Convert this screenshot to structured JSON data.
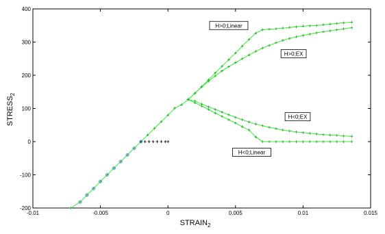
{
  "chart_data": {
    "type": "line",
    "xlabel": "STRAIN",
    "xlabel_sub": "2",
    "ylabel": "STRESS",
    "ylabel_sub": "2",
    "xlim": [
      -0.01,
      0.015
    ],
    "ylim": [
      -200,
      400
    ],
    "xticks": [
      -0.01,
      -0.005,
      0,
      0.005,
      0.01,
      0.015
    ],
    "xtick_labels": [
      "-0.01",
      "-0.005",
      "0",
      "0.005",
      "0.01",
      "0.015"
    ],
    "yticks": [
      -200,
      -100,
      0,
      100,
      200,
      300,
      400
    ],
    "ytick_labels": [
      "-200",
      "-100",
      "0",
      "100",
      "200",
      "300",
      "400"
    ],
    "grid": false,
    "colors": {
      "curve": "#33ee33",
      "marker": "#22aa22",
      "circle": "#7799ee",
      "black_marker": "#000000",
      "axis": "#000000"
    },
    "series": [
      {
        "id": "h-pos-linear",
        "color": "#33ee33",
        "marker": "plus",
        "x": [
          -0.0072,
          -0.0065,
          -0.006,
          -0.0055,
          -0.005,
          -0.0045,
          -0.004,
          -0.0035,
          -0.003,
          -0.0025,
          -0.002,
          -0.0015,
          -0.001,
          -0.0005,
          0,
          0.0005,
          0.001,
          0.0015,
          0.002,
          0.0025,
          0.003,
          0.0035,
          0.004,
          0.0045,
          0.005,
          0.0055,
          0.006,
          0.0065,
          0.007,
          0.0075,
          0.008,
          0.0085,
          0.009,
          0.0095,
          0.01,
          0.0105,
          0.011,
          0.0115,
          0.012,
          0.0125,
          0.013,
          0.0136
        ],
        "y": [
          -200,
          -182,
          -161,
          -141,
          -120,
          -100,
          -80,
          -60,
          -40,
          -20,
          0,
          20,
          40,
          60,
          80,
          101,
          111,
          127,
          146,
          166,
          186,
          207,
          227,
          247,
          267,
          288,
          308,
          327,
          337,
          339,
          340,
          342,
          344,
          346,
          348,
          349,
          350,
          352,
          354,
          356,
          358,
          360
        ]
      },
      {
        "id": "h-pos-ex",
        "color": "#33ee33",
        "marker": "plus",
        "x": [
          0.0015,
          0.002,
          0.0025,
          0.003,
          0.0035,
          0.004,
          0.0045,
          0.005,
          0.0055,
          0.006,
          0.0065,
          0.007,
          0.0075,
          0.008,
          0.0085,
          0.009,
          0.0095,
          0.01,
          0.0105,
          0.011,
          0.0115,
          0.012,
          0.0125,
          0.013,
          0.0136
        ],
        "y": [
          127,
          146,
          165,
          182,
          198,
          213,
          226,
          238,
          250,
          261,
          272,
          282,
          290,
          298,
          305,
          311,
          316,
          320,
          324,
          328,
          331,
          334,
          337,
          340,
          343
        ]
      },
      {
        "id": "h-neg-ex",
        "color": "#33ee33",
        "marker": "plus",
        "x": [
          0.0015,
          0.002,
          0.0025,
          0.003,
          0.0035,
          0.004,
          0.0045,
          0.005,
          0.0055,
          0.006,
          0.0065,
          0.007,
          0.0075,
          0.008,
          0.0085,
          0.009,
          0.0095,
          0.01,
          0.0105,
          0.011,
          0.0115,
          0.012,
          0.0125,
          0.013,
          0.0136
        ],
        "y": [
          127,
          122,
          113,
          105,
          97,
          89,
          81,
          73,
          66,
          59,
          53,
          48,
          43,
          39,
          35,
          32,
          29,
          27,
          25,
          23,
          21,
          20,
          19,
          17,
          16
        ]
      },
      {
        "id": "h-neg-linear",
        "color": "#33ee33",
        "marker": "plus",
        "x": [
          0.0015,
          0.002,
          0.0025,
          0.003,
          0.0035,
          0.004,
          0.0045,
          0.005,
          0.0055,
          0.006,
          0.0065,
          0.007,
          0.0075,
          0.008,
          0.0085,
          0.009,
          0.0095,
          0.01,
          0.0105,
          0.011,
          0.0115,
          0.012,
          0.0125,
          0.013,
          0.0136
        ],
        "y": [
          127,
          117,
          107,
          97,
          86,
          76,
          66,
          56,
          45,
          35,
          14,
          0,
          0,
          0,
          0,
          0,
          0,
          0,
          0,
          0,
          0,
          0,
          0,
          0,
          0
        ]
      },
      {
        "id": "unload-flat",
        "color": "#000000",
        "marker": "plus",
        "x": [
          -0.002,
          -0.0017,
          -0.0014,
          -0.0011,
          -0.0008,
          -0.0005,
          -0.0002,
          0
        ],
        "y": [
          0,
          0,
          0,
          0,
          0,
          0,
          0,
          0
        ]
      },
      {
        "id": "circles",
        "color": "#7799ee",
        "marker": "circle",
        "x": [
          -0.0065,
          -0.006,
          -0.0055,
          -0.005,
          -0.0045,
          -0.004,
          -0.0035,
          -0.003,
          -0.0025,
          -0.002
        ],
        "y": [
          -182,
          -161,
          -141,
          -120,
          -100,
          -80,
          -60,
          -40,
          -20,
          0
        ]
      }
    ],
    "annotations": [
      {
        "text": "H>0;Linear",
        "x": 0.0045,
        "y": 350
      },
      {
        "text": "H>0;EX",
        "x": 0.0093,
        "y": 265
      },
      {
        "text": "H<0;EX",
        "x": 0.0096,
        "y": 75
      },
      {
        "text": "H<0;Linear",
        "x": 0.0062,
        "y": -32
      }
    ]
  }
}
